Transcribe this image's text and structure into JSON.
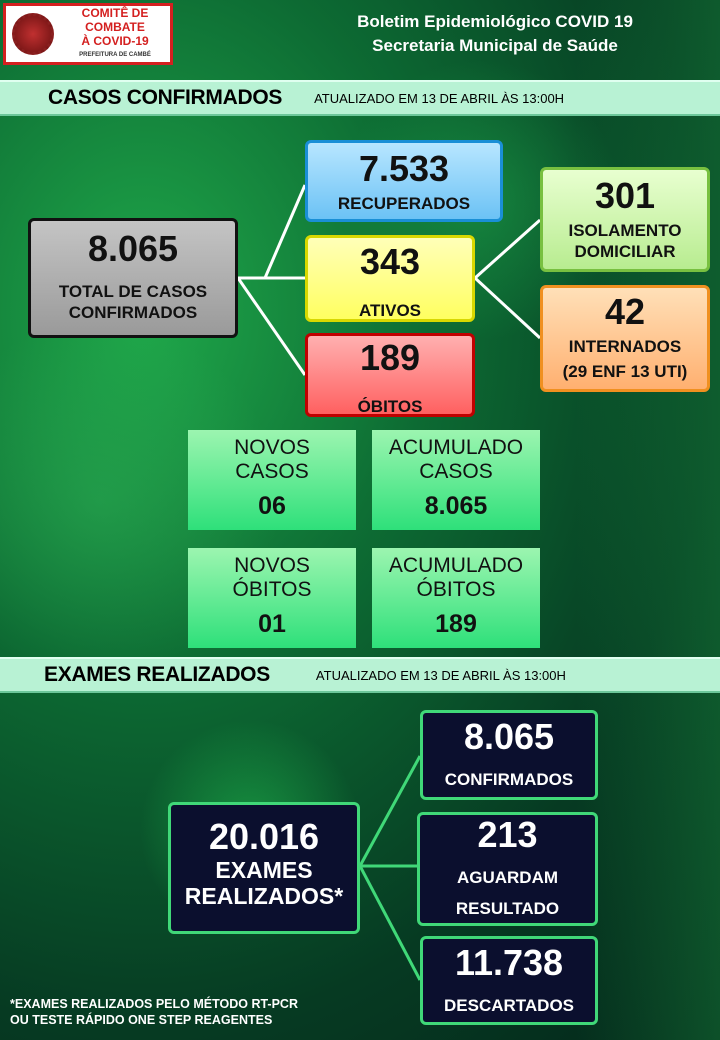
{
  "header": {
    "logo_line1": "COMITÊ DE COMBATE",
    "logo_line2": "À COVID-19",
    "logo_sub": "PREFEITURA DE CAMBÉ",
    "title1": "Boletim Epidemiológico COVID 19",
    "title2": "Secretaria Municipal de Saúde"
  },
  "casos": {
    "heading": "CASOS CONFIRMADOS",
    "updated": "ATUALIZADO  EM 13 DE ABRIL ÀS 13:00H",
    "total": {
      "value": "8.065",
      "label1": "TOTAL DE CASOS",
      "label2": "CONFIRMADOS"
    },
    "recuperados": {
      "value": "7.533",
      "label": "RECUPERADOS"
    },
    "ativos": {
      "value": "343",
      "label": "ATIVOS"
    },
    "obitos": {
      "value": "189",
      "label": "ÓBITOS"
    },
    "isolamento": {
      "value": "301",
      "label1": "ISOLAMENTO",
      "label2": "DOMICILIAR"
    },
    "internados": {
      "value": "42",
      "label": "INTERNADOS",
      "detail": "(29 ENF 13 UTI)"
    },
    "novos_casos": {
      "l1": "NOVOS",
      "l2": "CASOS",
      "value": "06"
    },
    "acum_casos": {
      "l1": "ACUMULADO",
      "l2": "CASOS",
      "value": "8.065"
    },
    "novos_obitos": {
      "l1": "NOVOS",
      "l2": "ÓBITOS",
      "value": "01"
    },
    "acum_obitos": {
      "l1": "ACUMULADO",
      "l2": "ÓBITOS",
      "value": "189"
    }
  },
  "exames": {
    "heading": "EXAMES REALIZADOS",
    "updated": "ATUALIZADO  EM 13 DE ABRIL ÀS 13:00H",
    "total": {
      "value": "20.016",
      "l1": "EXAMES",
      "l2": "REALIZADOS*"
    },
    "confirmados": {
      "value": "8.065",
      "label": "CONFIRMADOS"
    },
    "aguardam": {
      "value": "213",
      "l1": "AGUARDAM",
      "l2": "RESULTADO"
    },
    "descartados": {
      "value": "11.738",
      "label": "DESCARTADOS"
    },
    "footnote1": "*EXAMES REALIZADOS PELO MÉTODO RT-PCR",
    "footnote2": "OU TESTE RÁPIDO ONE STEP REAGENTES"
  }
}
